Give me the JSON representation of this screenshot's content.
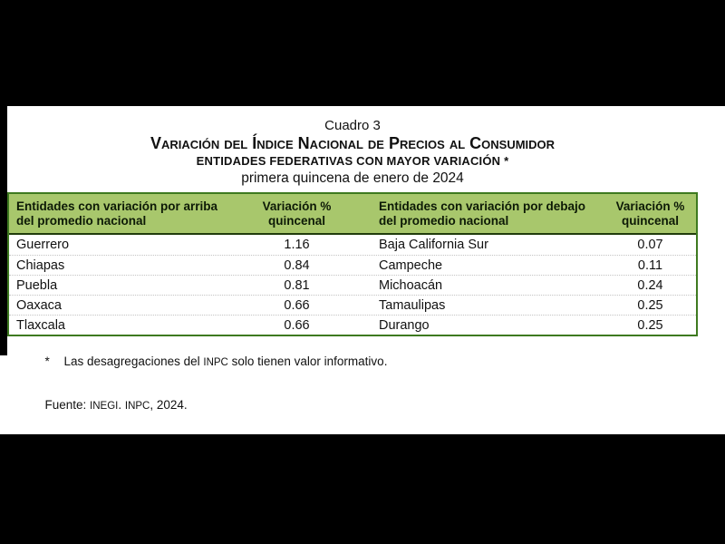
{
  "colors": {
    "background": "#000000",
    "slide_bg": "#ffffff",
    "header_bg": "#a8c76c",
    "table_border": "#3e7a20",
    "header_rule": "#203c0c",
    "row_divider": "#c4c4c4",
    "text": "#111111"
  },
  "titles": {
    "cuadro": "Cuadro 3",
    "main": "Variación del Índice Nacional de Precios al Consumidor",
    "sub": "ENTIDADES FEDERATIVAS CON MAYOR VARIACIÓN *",
    "period": "primera quincena de enero de 2024"
  },
  "table": {
    "headers": {
      "above_entity_line1": "Entidades con variación por arriba",
      "above_entity_line2": "del promedio nacional",
      "value_line1": "Variación %",
      "value_line2": "quincenal",
      "below_entity_line1": "Entidades con variación por debajo",
      "below_entity_line2": "del promedio nacional"
    },
    "rows": [
      {
        "above_entity": "Guerrero",
        "above_value": "1.16",
        "below_entity": "Baja California Sur",
        "below_value": "0.07"
      },
      {
        "above_entity": "Chiapas",
        "above_value": "0.84",
        "below_entity": "Campeche",
        "below_value": "0.11"
      },
      {
        "above_entity": "Puebla",
        "above_value": "0.81",
        "below_entity": "Michoacán",
        "below_value": "0.24"
      },
      {
        "above_entity": "Oaxaca",
        "above_value": "0.66",
        "below_entity": "Tamaulipas",
        "below_value": "0.25"
      },
      {
        "above_entity": "Tlaxcala",
        "above_value": "0.66",
        "below_entity": "Durango",
        "below_value": "0.25"
      }
    ]
  },
  "footnote": {
    "marker": "*",
    "text_pre": "Las desagregaciones del ",
    "inpc": "INPC",
    "text_post": " solo tienen valor informativo."
  },
  "source": {
    "label": "Fuente: ",
    "inegi": "INEGI",
    "separator": ". ",
    "inpc": "INPC",
    "suffix": ", 2024."
  }
}
